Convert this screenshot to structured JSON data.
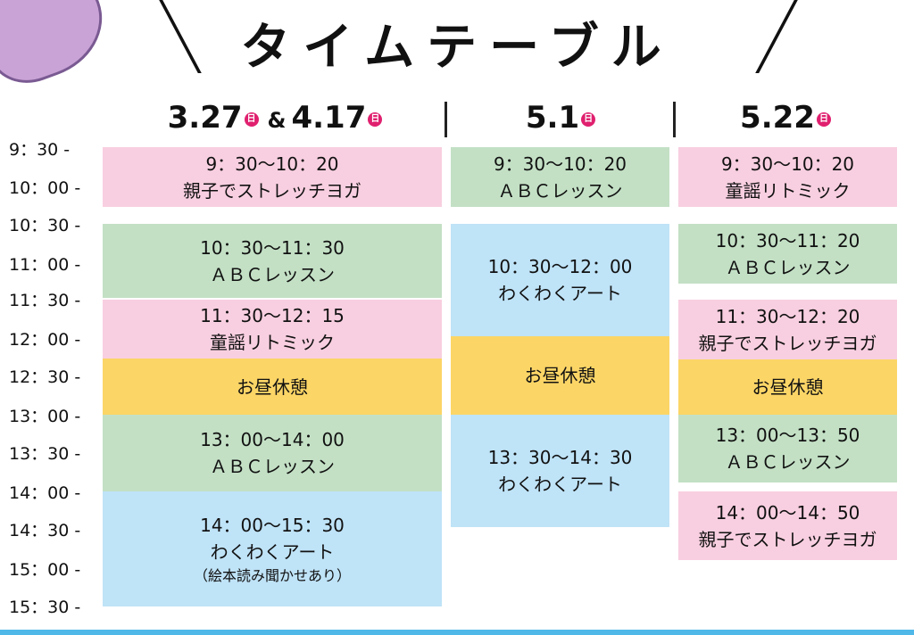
{
  "title": "タイムテーブル",
  "columns": [
    {
      "date_a": "3.27",
      "date_b": "4.17",
      "day_mark": "日",
      "amp": "&",
      "blocks": [
        {
          "time": "9：30〜10：20",
          "name": "親子でストレッチヨガ",
          "color": "pink"
        },
        {
          "time": "10：30〜11：30",
          "name": "ＡＢＣレッスン",
          "color": "green"
        },
        {
          "time": "11：30〜12：15",
          "name": "童謡リトミック",
          "color": "pink"
        },
        {
          "time": "",
          "name": "お昼休憩",
          "color": "yellow"
        },
        {
          "time": "13：00〜14：00",
          "name": "ＡＢＣレッスン",
          "color": "green"
        },
        {
          "time": "14：00〜15：30",
          "name": "わくわくアート",
          "note": "（絵本読み聞かせあり）",
          "color": "blue"
        }
      ]
    },
    {
      "date": "5.1",
      "day_mark": "日",
      "blocks": [
        {
          "time": "9：30〜10：20",
          "name": "ＡＢＣレッスン",
          "color": "green"
        },
        {
          "time": "10：30〜12：00",
          "name": "わくわくアート",
          "color": "blue"
        },
        {
          "time": "",
          "name": "お昼休憩",
          "color": "yellow"
        },
        {
          "time": "13：30〜14：30",
          "name": "わくわくアート",
          "color": "blue"
        }
      ]
    },
    {
      "date": "5.22",
      "day_mark": "日",
      "blocks": [
        {
          "time": "9：30〜10：20",
          "name": "童謡リトミック",
          "color": "pink"
        },
        {
          "time": "10：30〜11：20",
          "name": "ＡＢＣレッスン",
          "color": "green"
        },
        {
          "time": "11：30〜12：20",
          "name": "親子でストレッチヨガ",
          "color": "pink"
        },
        {
          "time": "",
          "name": "お昼休憩",
          "color": "yellow"
        },
        {
          "time": "13：00〜13：50",
          "name": "ＡＢＣレッスン",
          "color": "green"
        },
        {
          "time": "14：00〜14：50",
          "name": "親子でストレッチヨガ",
          "color": "pink"
        }
      ]
    }
  ],
  "times": [
    "9：30 -",
    "10：00 -",
    "10：30 -",
    "11：00 -",
    "11：30 -",
    "12：00 -",
    "12：30 -",
    "13：00 -",
    "13：30 -",
    "14：00 -",
    "14：30 -",
    "15：00 -",
    "15：30 -"
  ]
}
